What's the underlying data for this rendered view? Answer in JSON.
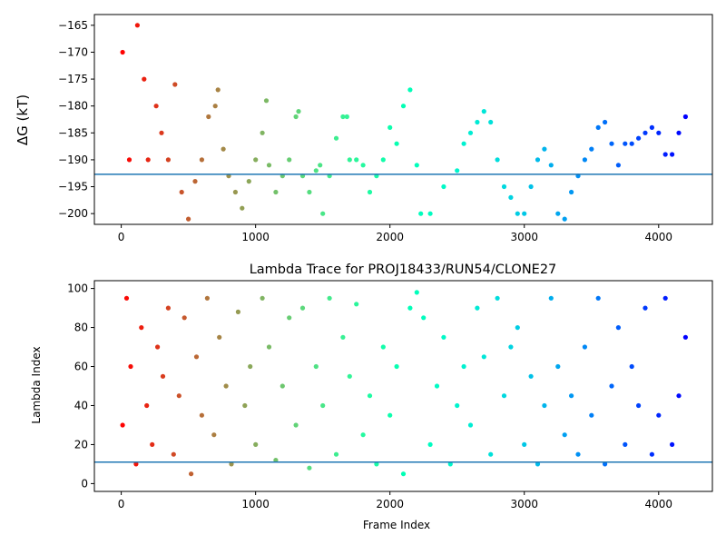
{
  "chart_data": [
    {
      "type": "scatter",
      "title": "",
      "ylabel": "ΔG (kT)",
      "xlabel": "",
      "xlim": [
        -200,
        4400
      ],
      "ylim": [
        -202,
        -163
      ],
      "xticks": [
        0,
        1000,
        2000,
        3000,
        4000
      ],
      "yticks": [
        -200,
        -195,
        -190,
        -185,
        -180,
        -175,
        -170,
        -165
      ],
      "hline": -192.7,
      "colormap": "rainbow",
      "x_max": 4200,
      "series": [
        {
          "x": [
            10,
            60,
            120,
            170,
            200,
            260,
            300,
            350,
            400,
            450,
            500,
            550,
            600,
            650,
            700,
            720,
            760,
            800,
            850,
            900,
            950,
            1000,
            1050,
            1080,
            1100,
            1150,
            1200,
            1250,
            1300,
            1320,
            1350,
            1400,
            1450,
            1480,
            1500,
            1550,
            1600,
            1650,
            1680,
            1700,
            1750,
            1800,
            1850,
            1900,
            1950,
            2000,
            2050,
            2100,
            2150,
            2200,
            2230,
            2300,
            2400,
            2500,
            2550,
            2600,
            2650,
            2700,
            2750,
            2800,
            2850,
            2900,
            2950,
            3000,
            3050,
            3100,
            3150,
            3200,
            3250,
            3300,
            3350,
            3400,
            3450,
            3500,
            3550,
            3600,
            3650,
            3700,
            3750,
            3800,
            3850,
            3900,
            3950,
            4000,
            4050,
            4100,
            4150,
            4200
          ],
          "y": [
            -170,
            -190,
            -165,
            -175,
            -190,
            -180,
            -185,
            -190,
            -176,
            -196,
            -201,
            -194,
            -190,
            -182,
            -180,
            -177,
            -188,
            -193,
            -196,
            -199,
            -194,
            -190,
            -185,
            -179,
            -191,
            -196,
            -193,
            -190,
            -182,
            -181,
            -193,
            -196,
            -192,
            -191,
            -200,
            -193,
            -186,
            -182,
            -182,
            -190,
            -190,
            -191,
            -196,
            -193,
            -190,
            -184,
            -187,
            -180,
            -177,
            -191,
            -200,
            -200,
            -195,
            -192,
            -187,
            -185,
            -183,
            -181,
            -183,
            -190,
            -195,
            -197,
            -200,
            -200,
            -195,
            -190,
            -188,
            -191,
            -200,
            -201,
            -196,
            -193,
            -190,
            -188,
            -184,
            -183,
            -187,
            -191,
            -187,
            -187,
            -186,
            -185,
            -184,
            -185,
            -189,
            -189,
            -185,
            -182
          ]
        }
      ]
    },
    {
      "type": "scatter",
      "title": "Lambda Trace for PROJ18433/RUN54/CLONE27",
      "xlabel": "Frame Index",
      "ylabel": "Lambda Index",
      "xlim": [
        -200,
        4400
      ],
      "ylim": [
        -4,
        104
      ],
      "xticks": [
        0,
        1000,
        2000,
        3000,
        4000
      ],
      "yticks": [
        0,
        20,
        40,
        60,
        80,
        100
      ],
      "hline": 11,
      "colormap": "rainbow",
      "x_max": 4200,
      "series": [
        {
          "x": [
            10,
            40,
            70,
            110,
            150,
            190,
            230,
            270,
            310,
            350,
            390,
            430,
            470,
            520,
            560,
            600,
            640,
            690,
            730,
            780,
            820,
            870,
            920,
            960,
            1000,
            1050,
            1100,
            1150,
            1200,
            1250,
            1300,
            1350,
            1400,
            1450,
            1500,
            1550,
            1600,
            1650,
            1700,
            1750,
            1800,
            1850,
            1900,
            1950,
            2000,
            2050,
            2100,
            2150,
            2200,
            2250,
            2300,
            2350,
            2400,
            2450,
            2500,
            2550,
            2600,
            2650,
            2700,
            2750,
            2800,
            2850,
            2900,
            2950,
            3000,
            3050,
            3100,
            3150,
            3200,
            3250,
            3300,
            3350,
            3400,
            3450,
            3500,
            3550,
            3600,
            3650,
            3700,
            3750,
            3800,
            3850,
            3900,
            3950,
            4000,
            4050,
            4100,
            4150,
            4200
          ],
          "y": [
            30,
            95,
            60,
            10,
            80,
            40,
            20,
            70,
            55,
            90,
            15,
            45,
            85,
            5,
            65,
            35,
            95,
            25,
            75,
            50,
            10,
            88,
            40,
            60,
            20,
            95,
            70,
            12,
            50,
            85,
            30,
            90,
            8,
            60,
            40,
            95,
            15,
            75,
            55,
            92,
            25,
            45,
            10,
            70,
            35,
            60,
            5,
            90,
            98,
            85,
            20,
            50,
            75,
            10,
            40,
            60,
            30,
            90,
            65,
            15,
            95,
            45,
            70,
            80,
            20,
            55,
            10,
            40,
            95,
            60,
            25,
            45,
            15,
            70,
            35,
            95,
            10,
            50,
            80,
            20,
            60,
            40,
            90,
            15,
            35,
            95,
            20,
            45,
            75
          ]
        }
      ]
    }
  ]
}
